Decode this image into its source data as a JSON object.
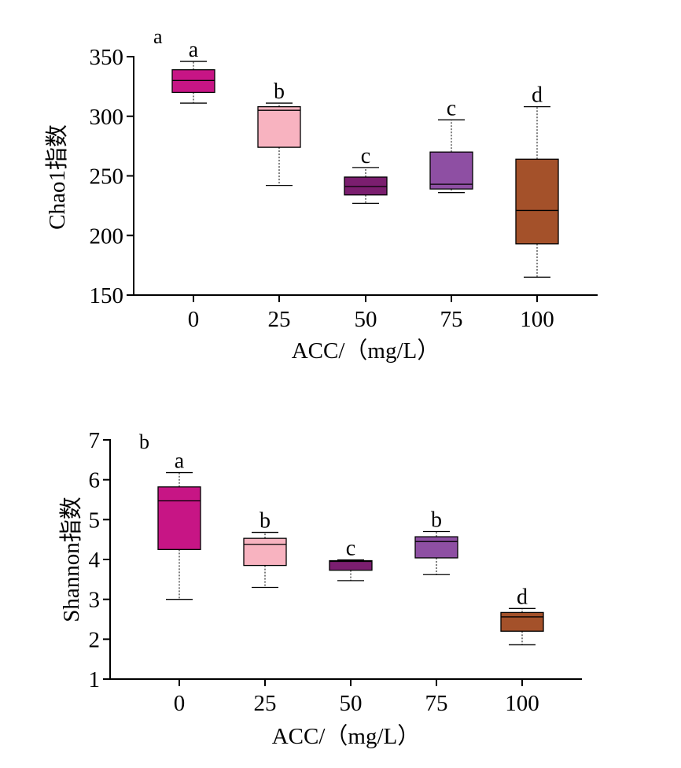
{
  "chart_data": [
    {
      "type": "box",
      "panel_label": "a",
      "xlabel": "ACC/（mg/L）",
      "ylabel": "Chao1指数",
      "categories": [
        "0",
        "25",
        "50",
        "75",
        "100"
      ],
      "ylim": [
        150,
        350
      ],
      "yticks": [
        "150",
        "200",
        "250",
        "300",
        "350"
      ],
      "grid": false,
      "boxes": [
        {
          "category": "0",
          "whisker_low": 311,
          "q1": 320,
          "median": 330,
          "q3": 339,
          "whisker_high": 346,
          "letter": "a",
          "color": "#C71585"
        },
        {
          "category": "25",
          "whisker_low": 242,
          "q1": 274,
          "median": 305,
          "q3": 308,
          "whisker_high": 311,
          "letter": "b",
          "color": "#F8B3C0"
        },
        {
          "category": "50",
          "whisker_low": 227,
          "q1": 234,
          "median": 241,
          "q3": 249,
          "whisker_high": 257,
          "letter": "c",
          "color": "#7B1E6F"
        },
        {
          "category": "75",
          "whisker_low": 236,
          "q1": 239,
          "median": 243,
          "q3": 270,
          "whisker_high": 297,
          "letter": "c",
          "color": "#8E4FA3"
        },
        {
          "category": "100",
          "whisker_low": 165,
          "q1": 193,
          "median": 221,
          "q3": 264,
          "whisker_high": 308,
          "letter": "d",
          "color": "#A4512A"
        }
      ]
    },
    {
      "type": "box",
      "panel_label": "b",
      "xlabel": "ACC/（mg/L）",
      "ylabel": "Shannon指数",
      "categories": [
        "0",
        "25",
        "50",
        "75",
        "100"
      ],
      "ylim": [
        1,
        7
      ],
      "yticks": [
        "1",
        "2",
        "3",
        "4",
        "5",
        "6",
        "7"
      ],
      "grid": false,
      "boxes": [
        {
          "category": "0",
          "whisker_low": 3.0,
          "q1": 4.25,
          "median": 5.47,
          "q3": 5.82,
          "whisker_high": 6.18,
          "letter": "a",
          "color": "#C71585"
        },
        {
          "category": "25",
          "whisker_low": 3.3,
          "q1": 3.85,
          "median": 4.38,
          "q3": 4.53,
          "whisker_high": 4.68,
          "letter": "b",
          "color": "#F8B3C0"
        },
        {
          "category": "50",
          "whisker_low": 3.47,
          "q1": 3.73,
          "median": 3.95,
          "q3": 3.97,
          "whisker_high": 3.99,
          "letter": "c",
          "color": "#7B1E6F"
        },
        {
          "category": "75",
          "whisker_low": 3.62,
          "q1": 4.04,
          "median": 4.45,
          "q3": 4.57,
          "whisker_high": 4.7,
          "letter": "b",
          "color": "#8E4FA3"
        },
        {
          "category": "100",
          "whisker_low": 1.86,
          "q1": 2.2,
          "median": 2.56,
          "q3": 2.67,
          "whisker_high": 2.77,
          "letter": "d",
          "color": "#A4512A"
        }
      ]
    }
  ]
}
